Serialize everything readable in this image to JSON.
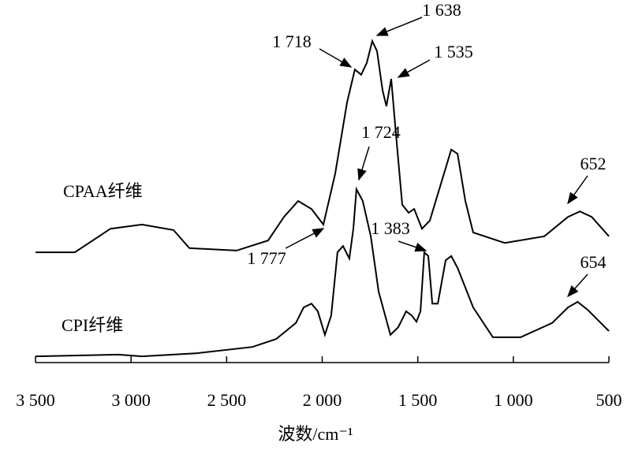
{
  "chart_data": {
    "type": "line",
    "x_label": "波数/cm⁻¹",
    "xlim": [
      3500,
      500
    ],
    "xticks": [
      {
        "value": 3500,
        "label": "3 500"
      },
      {
        "value": 3000,
        "label": "3 000"
      },
      {
        "value": 2500,
        "label": "2 500"
      },
      {
        "value": 2000,
        "label": "2 000"
      },
      {
        "value": 1500,
        "label": "1 500"
      },
      {
        "value": 1000,
        "label": "1 000"
      },
      500
    ],
    "ylim": [
      0,
      100
    ],
    "annotations": [
      "1 718",
      "1 638",
      "1 535",
      "1 724",
      "1 777",
      "1 383",
      "652",
      "654"
    ],
    "series": [
      {
        "name": "CPAA纤维",
        "color": "#000000",
        "x": [
          3500,
          3294,
          3108,
          2943,
          2778,
          2695,
          2448,
          2283,
          2200,
          2126,
          2056,
          1994,
          1932,
          1870,
          1829,
          1796,
          1767,
          1738,
          1713,
          1684,
          1664,
          1639,
          1614,
          1581,
          1548,
          1519,
          1478,
          1437,
          1375,
          1325,
          1292,
          1251,
          1210,
          1045,
          838,
          714,
          652,
          590,
          500
        ],
        "values": [
          31.8,
          31.8,
          38.6,
          39.8,
          38.2,
          33,
          32.3,
          35.2,
          42,
          46.6,
          44.3,
          39.8,
          54.5,
          75,
          84.5,
          83,
          86.4,
          92.7,
          89.8,
          78.4,
          73.9,
          81.8,
          65.9,
          45.5,
          43.2,
          44.3,
          38.6,
          40.9,
          52.3,
          61.4,
          60.2,
          46.6,
          37.5,
          34.5,
          36.4,
          42,
          43.6,
          42,
          36.4
        ]
      },
      {
        "name": "CPI纤维",
        "color": "#000000",
        "x": [
          3500,
          3067,
          2943,
          2654,
          2365,
          2241,
          2138,
          2097,
          2056,
          2023,
          1986,
          1953,
          1920,
          1891,
          1858,
          1837,
          1821,
          1788,
          1746,
          1705,
          1643,
          1602,
          1561,
          1532,
          1507,
          1486,
          1466,
          1445,
          1424,
          1395,
          1354,
          1325,
          1292,
          1210,
          1107,
          962,
          797,
          714,
          664,
          611,
          500
        ],
        "values": [
          1.8,
          2.3,
          1.8,
          2.7,
          4.5,
          6.8,
          11.4,
          15.9,
          17,
          14.8,
          8,
          13.6,
          31.8,
          33.6,
          30,
          38.6,
          50,
          46.6,
          36.4,
          20.5,
          8,
          10.2,
          14.8,
          13.6,
          11.8,
          14.8,
          31.8,
          30.7,
          17,
          17,
          29.5,
          30.7,
          27.3,
          15.9,
          7.3,
          7.3,
          11.4,
          15.9,
          17.5,
          15.2,
          9.1
        ]
      }
    ]
  }
}
